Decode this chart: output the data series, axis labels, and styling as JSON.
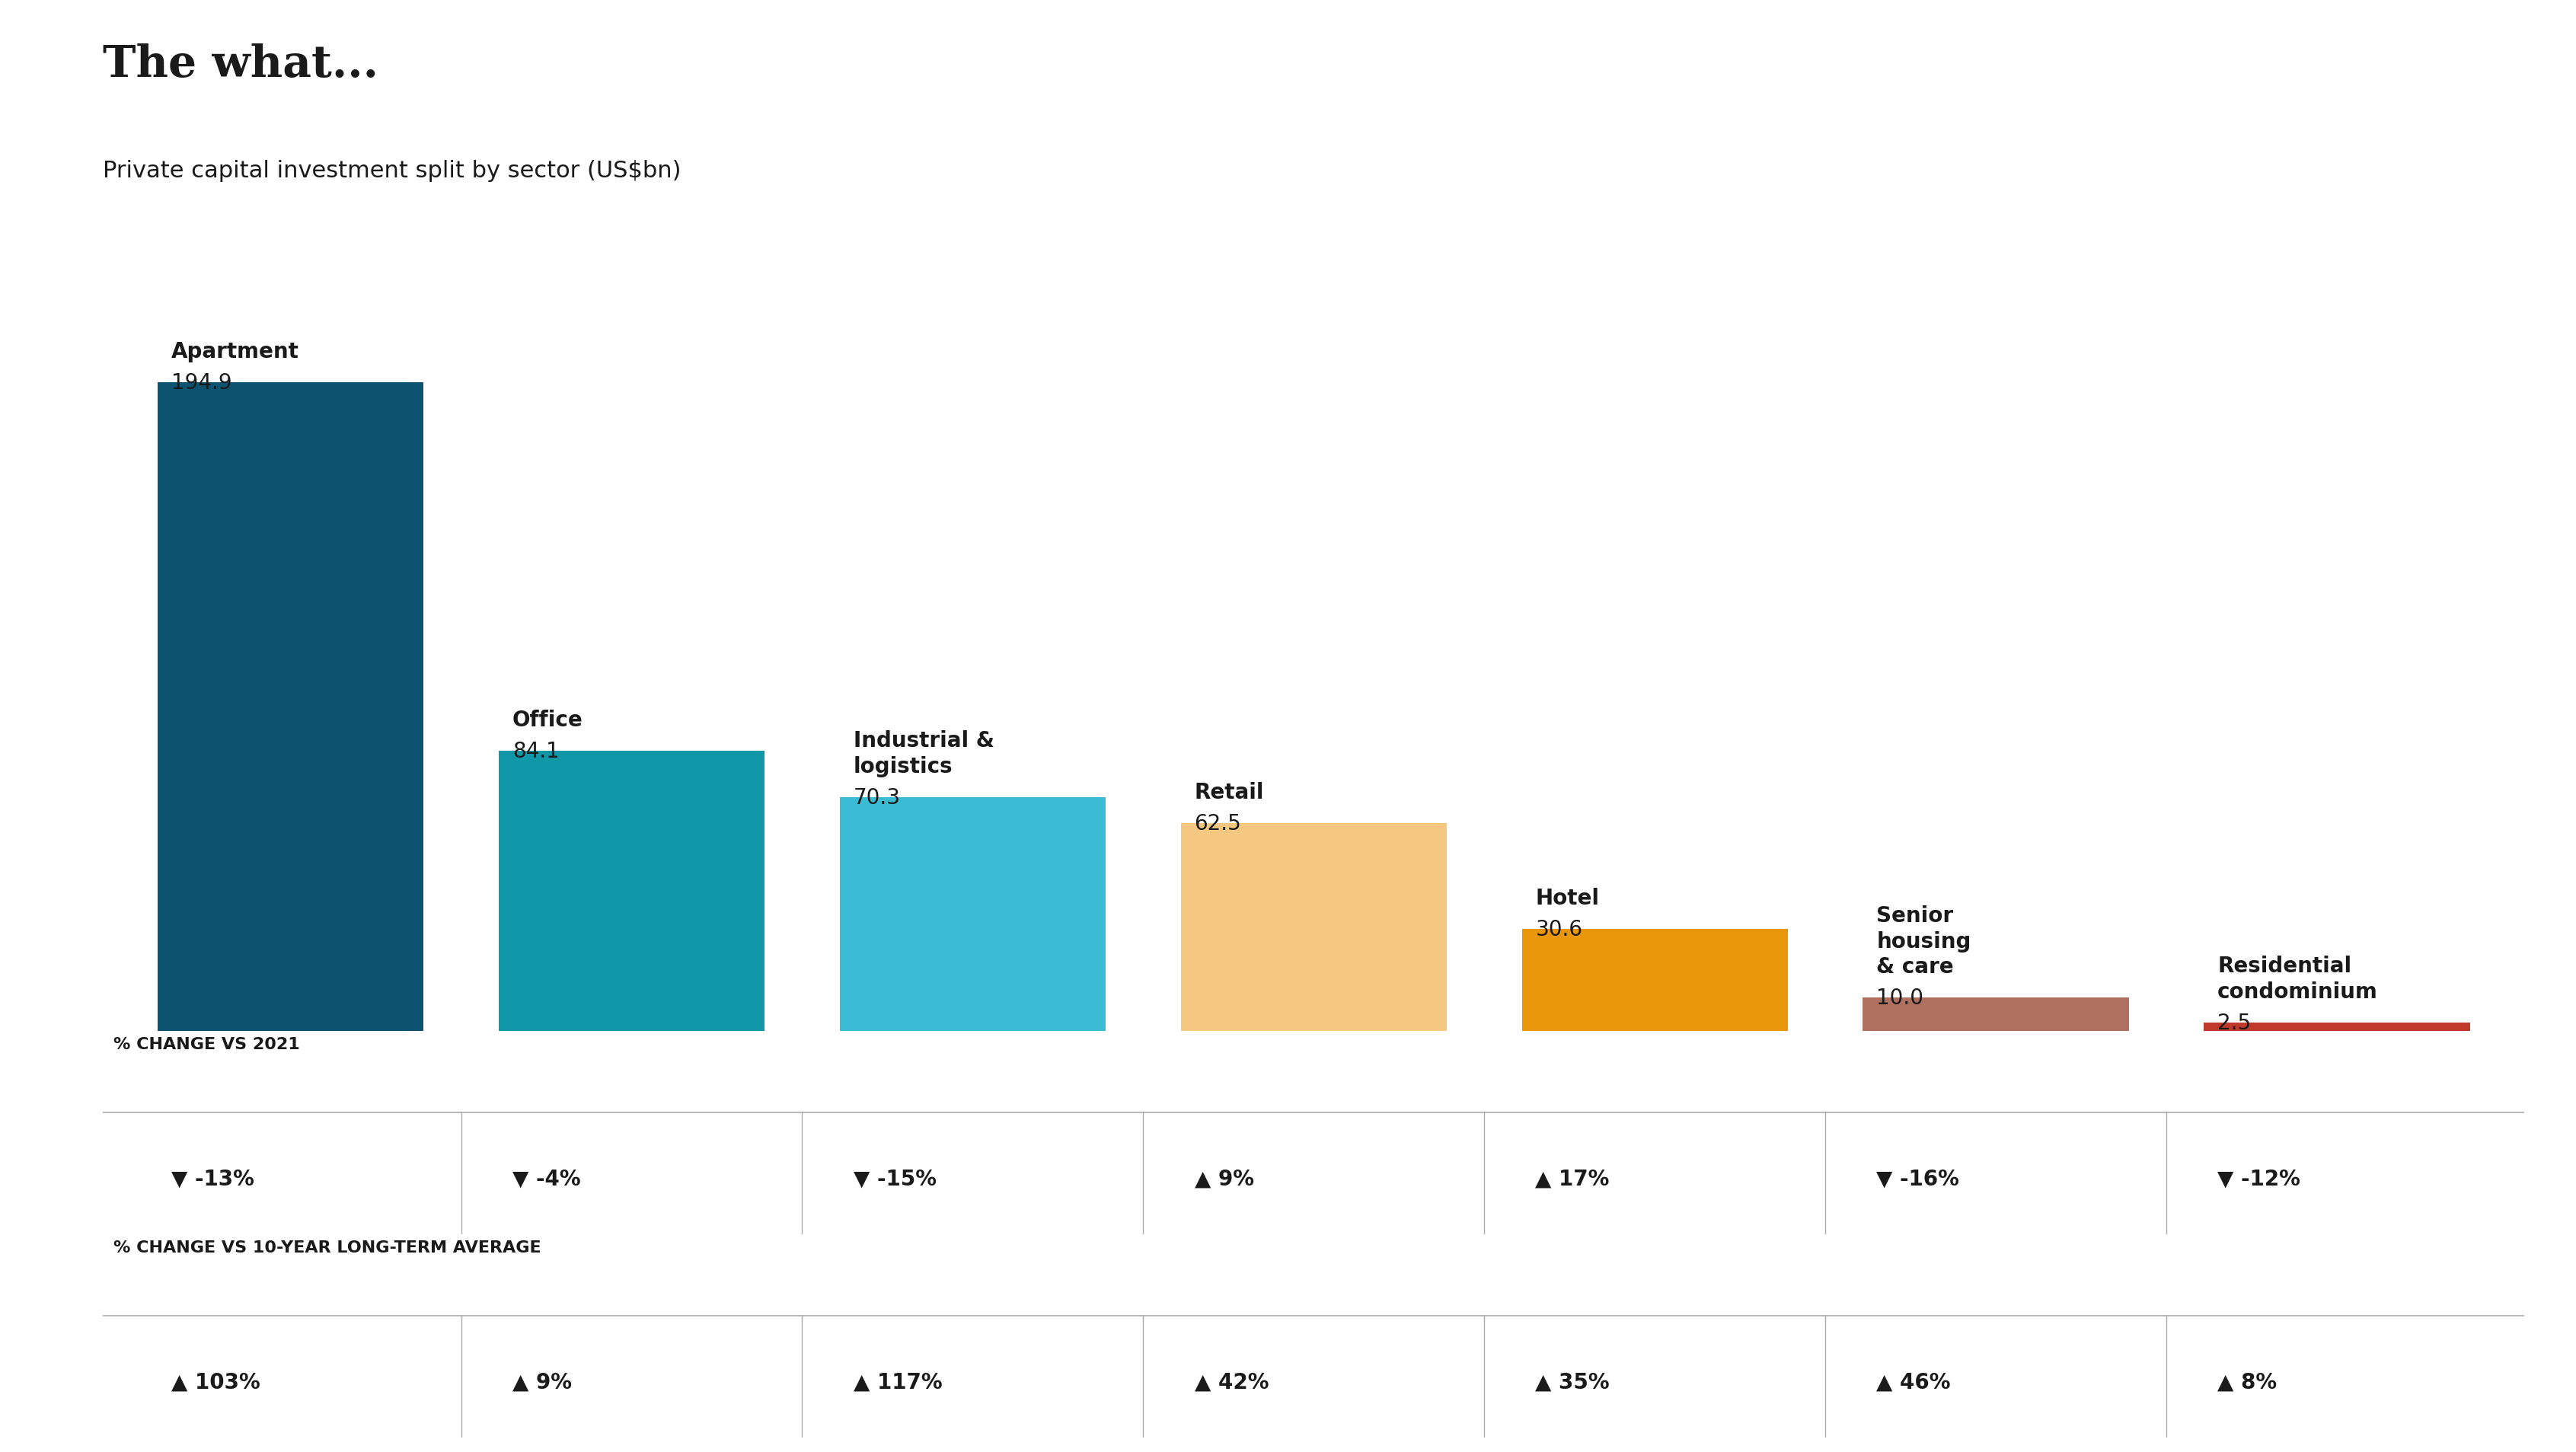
{
  "title": "The what...",
  "subtitle": "Private capital investment split by sector (US$bn)",
  "categories": [
    "Apartment",
    "Office",
    "Industrial &\nlogistics",
    "Retail",
    "Hotel",
    "Senior\nhousing\n& care",
    "Residential\ncondominium"
  ],
  "values": [
    194.9,
    84.1,
    70.3,
    62.5,
    30.6,
    10.0,
    2.5
  ],
  "bar_colors": [
    "#0d5370",
    "#1098a8",
    "#3bbcd4",
    "#f5c882",
    "#e8960a",
    "#b07060",
    "#c0392b"
  ],
  "change_vs_2021": [
    "-13%",
    "-4%",
    "-15%",
    "9%",
    "17%",
    "-16%",
    "-12%"
  ],
  "change_vs_2021_up": [
    false,
    false,
    false,
    true,
    true,
    false,
    false
  ],
  "change_vs_10yr": [
    "103%",
    "9%",
    "117%",
    "42%",
    "35%",
    "46%",
    "8%"
  ],
  "change_vs_10yr_up": [
    true,
    true,
    true,
    true,
    true,
    true,
    true
  ],
  "section1_label": "% CHANGE VS 2021",
  "section2_label": "% CHANGE VS 10-YEAR LONG-TERM AVERAGE",
  "background_color": "#ffffff",
  "title_fontsize": 42,
  "subtitle_fontsize": 22,
  "bar_label_fontsize": 20,
  "bar_value_fontsize": 20,
  "table_fontsize": 20,
  "section_label_fontsize": 16,
  "divider_color": "#aaaaaa",
  "text_color": "#1a1a1a"
}
